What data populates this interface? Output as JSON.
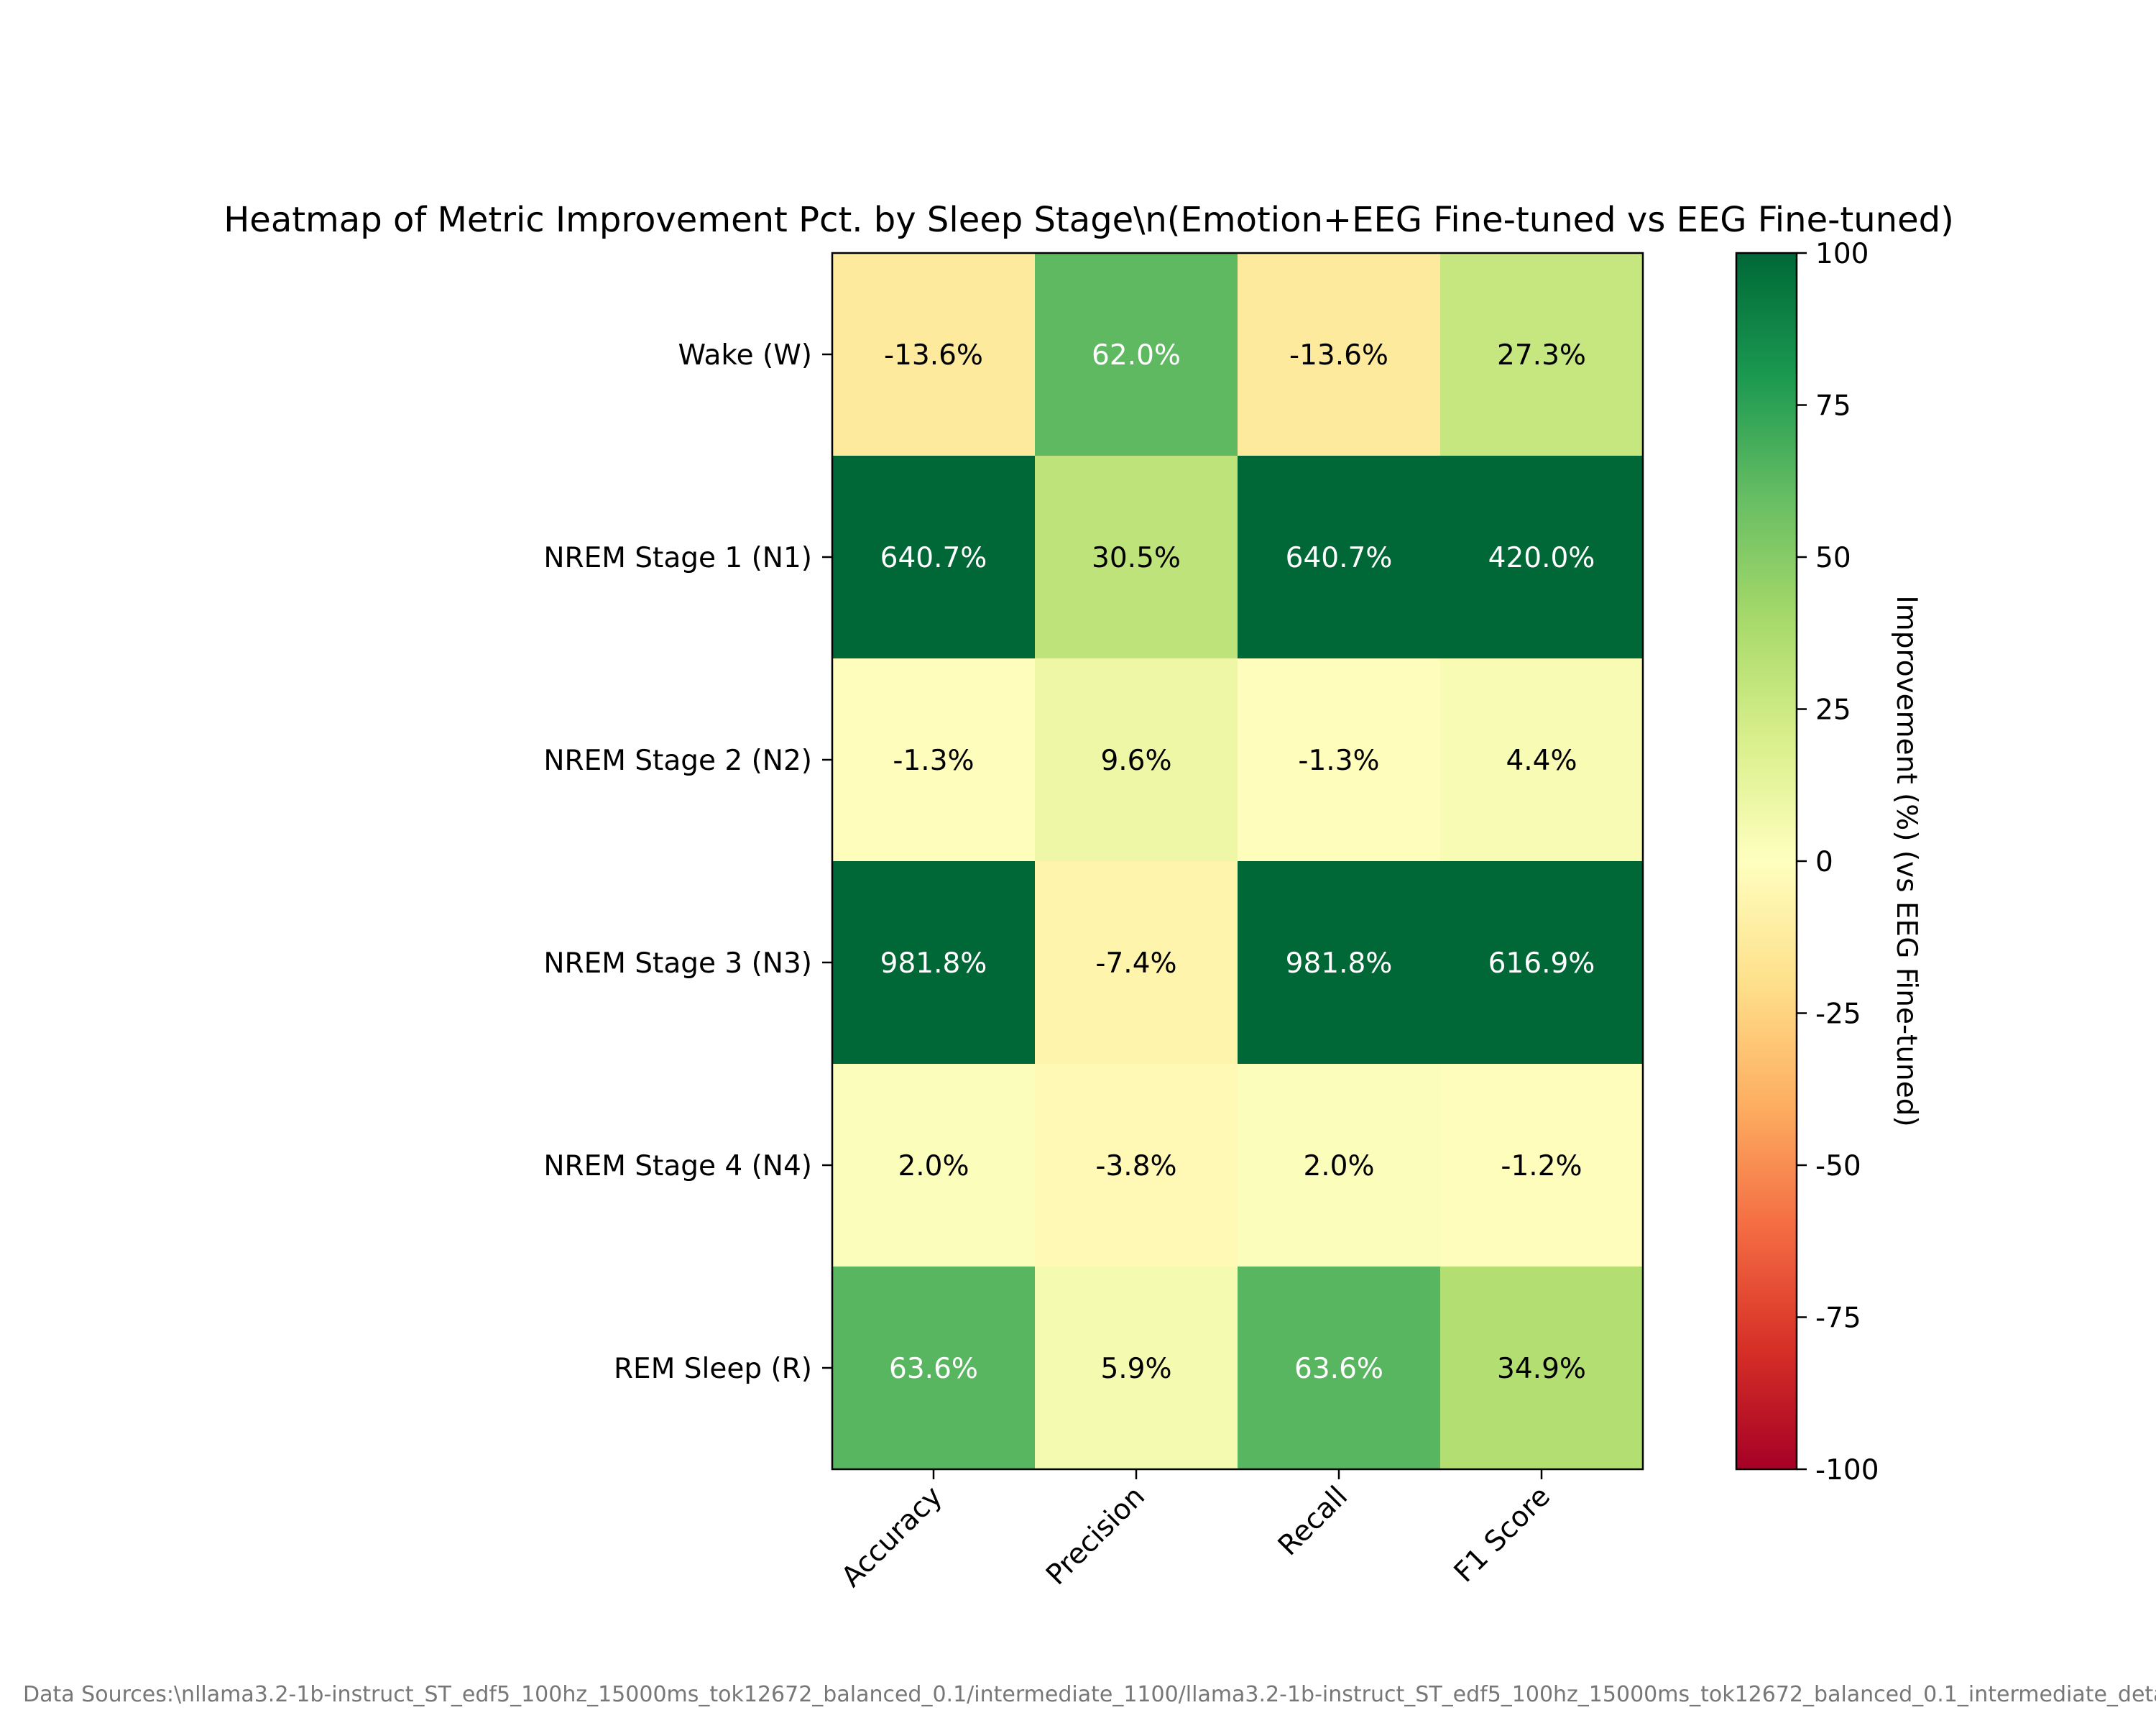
{
  "chart_data": {
    "type": "heatmap",
    "title": "Heatmap of Metric Improvement Pct. by Sleep Stage\\n(Emotion+EEG Fine-tuned vs EEG Fine-tuned)",
    "rows": [
      "Wake (W)",
      "NREM Stage 1 (N1)",
      "NREM Stage 2 (N2)",
      "NREM Stage 3 (N3)",
      "NREM Stage 4 (N4)",
      "REM Sleep (R)"
    ],
    "columns": [
      "Accuracy",
      "Precision",
      "Recall",
      "F1 Score"
    ],
    "values": [
      [
        -13.6,
        62.0,
        -13.6,
        27.3
      ],
      [
        640.7,
        30.5,
        640.7,
        420.0
      ],
      [
        -1.3,
        9.6,
        -1.3,
        4.4
      ],
      [
        981.8,
        -7.4,
        981.8,
        616.9
      ],
      [
        2.0,
        -3.8,
        2.0,
        -1.2
      ],
      [
        63.6,
        5.9,
        63.6,
        34.9
      ]
    ],
    "cell_labels": [
      [
        "-13.6%",
        "62.0%",
        "-13.6%",
        "27.3%"
      ],
      [
        "640.7%",
        "30.5%",
        "640.7%",
        "420.0%"
      ],
      [
        "-1.3%",
        "9.6%",
        "-1.3%",
        "4.4%"
      ],
      [
        "981.8%",
        "-7.4%",
        "981.8%",
        "616.9%"
      ],
      [
        "2.0%",
        "-3.8%",
        "2.0%",
        "-1.2%"
      ],
      [
        "63.6%",
        "5.9%",
        "63.6%",
        "34.9%"
      ]
    ],
    "colormap": "RdYlGn",
    "color_range": [
      -100,
      100
    ],
    "colorbar": {
      "label": "Improvement (%) (vs EEG Fine-tuned)",
      "ticks": [
        100,
        75,
        50,
        25,
        0,
        -25,
        -50,
        -75,
        -100
      ]
    }
  },
  "footnote": "Data Sources:\\nllama3.2-1b-instruct_ST_edf5_100hz_15000ms_tok12672_balanced_0.1/intermediate_1100/llama3.2-1b-instruct_ST_edf5_100hz_15000ms_tok12672_balanced_0.1_intermediate_detailed_r"
}
